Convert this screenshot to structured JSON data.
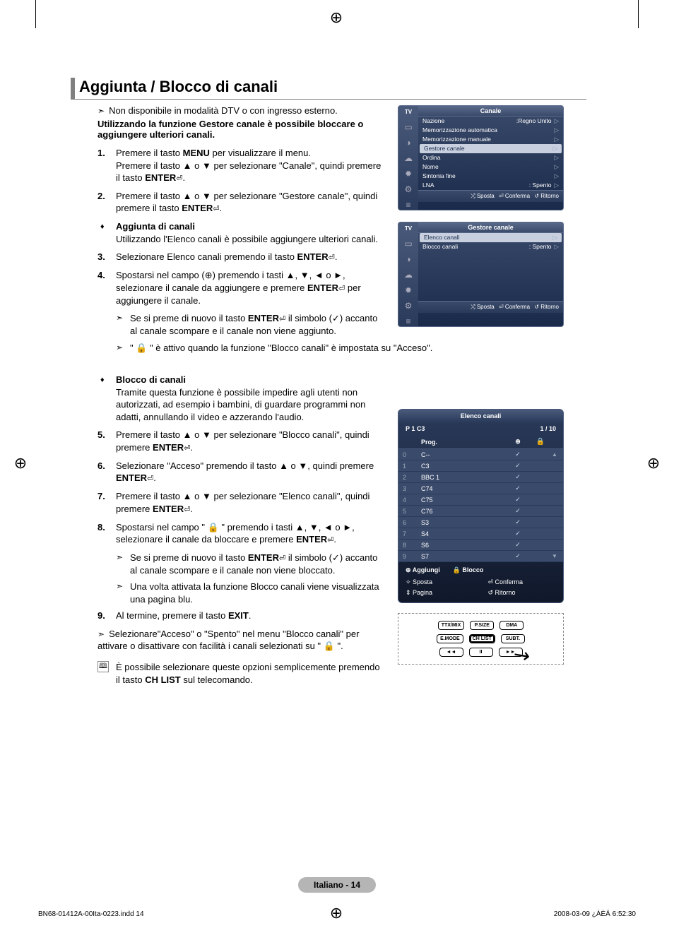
{
  "title": "Aggiunta / Blocco di canali",
  "intro_note": "Non disponibile in modalità DTV o con ingresso esterno.",
  "intro_bold": "Utilizzando la funzione Gestore canale è possibile bloccare o aggiungere ulteriori canali.",
  "steps": {
    "s1a": "Premere il tasto ",
    "s1_menu": "MENU",
    "s1b": " per visualizzare il menu.",
    "s1c": "Premere il tasto ▲ o ▼ per selezionare \"Canale\", quindi premere il tasto ",
    "enter": "ENTER",
    "s1d": ".",
    "s2a": "Premere il tasto ▲ o ▼ per selezionare \"Gestore canale\", quindi premere il tasto ",
    "s2b": ".",
    "add_title": "Aggiunta di canali",
    "add_body": "Utilizzando l'Elenco canali è possibile aggiungere ulteriori canali.",
    "s3a": "Selezionare Elenco canali premendo il tasto ",
    "s3b": ".",
    "s4a": "Spostarsi nel campo (⊕) premendo i tasti ▲, ▼, ◄ o ►, selezionare il canale da aggiungere e premere ",
    "s4b": " per aggiungere il canale.",
    "s4_note1a": "Se si preme di nuovo il tasto ",
    "s4_note1b": " il simbolo (✓) accanto al canale scompare e il canale non viene aggiunto.",
    "s4_note2": "\" 🔒 \" è attivo quando la funzione \"Blocco canali\" è impostata su \"Acceso\".",
    "block_title": "Blocco di canali",
    "block_body": "Tramite questa funzione è possibile impedire agli utenti non autorizzati, ad esempio i bambini, di guardare programmi non adatti, annullando il video e azzerando l'audio.",
    "s5a": "Premere il tasto ▲ o ▼ per selezionare \"Blocco canali\", quindi premere ",
    "s5b": ".",
    "s6a": "Selezionare \"Acceso\" premendo il tasto ▲ o ▼, quindi premere ",
    "s6b": ".",
    "s7a": "Premere il tasto ▲ o ▼ per selezionare \"Elenco canali\", quindi premere ",
    "s7b": ".",
    "s8a": "Spostarsi nel campo \" 🔒 \" premendo i tasti ▲, ▼, ◄ o ►, selezionare il canale da bloccare e premere ",
    "s8b": ".",
    "s8_note1a": "Se si preme di nuovo il tasto ",
    "s8_note1b": " il simbolo (✓) accanto al canale scompare e il canale non viene bloccato.",
    "s8_note2": "Una volta attivata la funzione Blocco canali viene visualizzata una pagina blu.",
    "s9a": "Al termine, premere il tasto ",
    "s9_exit": "EXIT",
    "s9b": ".",
    "s_last": "Selezionare\"Acceso\" o \"Spento\" nel menu \"Blocco canali\" per attivare o disattivare con facilità i canali selezionati su \" 🔒 \".",
    "remote_note_a": "È possibile selezionare queste opzioni semplicemente premendo il tasto ",
    "remote_note_btn": "CH LIST",
    "remote_note_b": " sul telecomando."
  },
  "osd1": {
    "side_label": "TV",
    "title": "Canale",
    "rows": [
      {
        "l": "Nazione",
        "r": ":Regno Unito"
      },
      {
        "l": "Memorizzazione automatica",
        "r": ""
      },
      {
        "l": "Memorizzazione manuale",
        "r": ""
      },
      {
        "l": "Gestore canale",
        "r": "",
        "hl": true
      },
      {
        "l": "Ordina",
        "r": ""
      },
      {
        "l": "Nome",
        "r": ""
      },
      {
        "l": "Sintonia fine",
        "r": ""
      },
      {
        "l": "LNA",
        "r": ": Spento"
      }
    ],
    "foot": {
      "a": "⤮ Sposta",
      "b": "⏎ Conferma",
      "c": "↺ Ritorno"
    }
  },
  "osd2": {
    "side_label": "TV",
    "title": "Gestore canale",
    "rows": [
      {
        "l": "Elenco canali",
        "r": "",
        "hl": true
      },
      {
        "l": "Blocco canali",
        "r": ": Spento"
      }
    ],
    "foot": {
      "a": "⤮ Sposta",
      "b": "⏎ Conferma",
      "c": "↺ Ritorno"
    }
  },
  "chlist": {
    "title": "Elenco canali",
    "sub_left": "P  1  C3",
    "sub_right": "1 / 10",
    "col_prog": "Prog.",
    "col_add": "⊕",
    "col_lock": "🔒",
    "rows": [
      {
        "n": "0",
        "name": "C--",
        "a": "✓",
        "l": ""
      },
      {
        "n": "1",
        "name": "C3",
        "a": "✓",
        "l": ""
      },
      {
        "n": "2",
        "name": "BBC 1",
        "a": "✓",
        "l": ""
      },
      {
        "n": "3",
        "name": "C74",
        "a": "✓",
        "l": ""
      },
      {
        "n": "4",
        "name": "C75",
        "a": "✓",
        "l": ""
      },
      {
        "n": "5",
        "name": "C76",
        "a": "✓",
        "l": ""
      },
      {
        "n": "6",
        "name": "S3",
        "a": "✓",
        "l": ""
      },
      {
        "n": "7",
        "name": "S4",
        "a": "✓",
        "l": ""
      },
      {
        "n": "8",
        "name": "S6",
        "a": "✓",
        "l": ""
      },
      {
        "n": "9",
        "name": "S7",
        "a": "✓",
        "l": ""
      }
    ],
    "foot1": {
      "add": "⊕  Aggiungi",
      "lock": "🔒 Blocco"
    },
    "foot2": {
      "move": "✧ Sposta",
      "confirm": "⏎ Conferma",
      "page": "⇕ Pagina",
      "return": "↺ Ritorno"
    }
  },
  "remote": {
    "r1": [
      "TTX/MIX",
      "P.SIZE",
      "DMA"
    ],
    "r2": [
      "E.MODE",
      "CH LIST",
      "SUBT."
    ],
    "r3": [
      "◄◄",
      "II",
      "►►"
    ]
  },
  "page_pill": "Italiano - 14",
  "meta_left": "BN68-01412A-00Ita-0223.indd   14",
  "meta_right": "2008-03-09   ¿ÀÈÄ 6:52:30"
}
